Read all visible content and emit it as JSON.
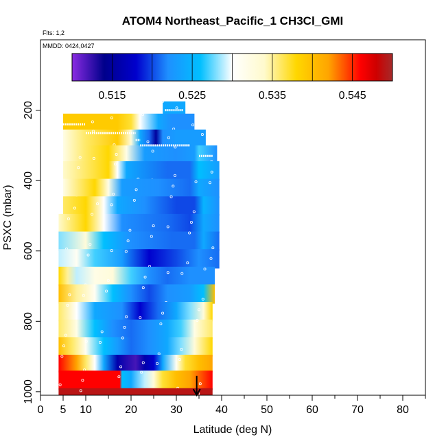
{
  "chart_data": {
    "type": "heatmap",
    "title": "ATOM4 Northeast_Pacific_1 CH3Cl_GMI",
    "annotations": [
      "Flts: 1,2",
      "MMDD: 0424,0427"
    ],
    "xlabel": "Latitude (deg N)",
    "ylabel": "PSXC (mbar)",
    "xlim": [
      0,
      85
    ],
    "ylim": [
      1010,
      0
    ],
    "x_ticks": [
      0,
      5,
      10,
      20,
      30,
      40,
      50,
      60,
      70,
      80
    ],
    "y_ticks": [
      200,
      400,
      600,
      800,
      1000
    ],
    "colorbar": {
      "min": 0.51,
      "max": 0.55,
      "ticks": [
        0.515,
        0.525,
        0.535,
        0.545
      ],
      "tick_labels": [
        "0.515",
        "0.525",
        "0.535",
        "0.545"
      ],
      "stops": [
        {
          "v": 0.51,
          "c": "#8a2be2"
        },
        {
          "v": 0.514,
          "c": "#00008b"
        },
        {
          "v": 0.518,
          "c": "#0000cd"
        },
        {
          "v": 0.522,
          "c": "#1e90ff"
        },
        {
          "v": 0.526,
          "c": "#00bfff"
        },
        {
          "v": 0.53,
          "c": "#ffffff"
        },
        {
          "v": 0.534,
          "c": "#fffacd"
        },
        {
          "v": 0.538,
          "c": "#ffd700"
        },
        {
          "v": 0.542,
          "c": "#ffa500"
        },
        {
          "v": 0.546,
          "c": "#ff0000"
        },
        {
          "v": 0.548,
          "c": "#cd0000"
        },
        {
          "v": 0.55,
          "c": "#a52a2a"
        }
      ]
    },
    "bands": [
      {
        "p0": 175,
        "p1": 220,
        "lat0": 27,
        "lat1": 32,
        "profile": [
          [
            27,
            0.524
          ],
          [
            32,
            0.524
          ]
        ]
      },
      {
        "p0": 210,
        "p1": 260,
        "lat0": 5,
        "lat1": 34,
        "profile": [
          [
            5,
            0.539
          ],
          [
            17,
            0.539
          ],
          [
            20,
            0.537
          ],
          [
            22,
            0.53
          ],
          [
            26,
            0.524
          ],
          [
            29,
            0.522
          ],
          [
            34,
            0.522
          ]
        ]
      },
      {
        "p0": 255,
        "p1": 305,
        "lat0": 5,
        "lat1": 36.5,
        "profile": [
          [
            5,
            0.532
          ],
          [
            10,
            0.536
          ],
          [
            17,
            0.539
          ],
          [
            20,
            0.533
          ],
          [
            22,
            0.524
          ],
          [
            24,
            0.521
          ],
          [
            25.5,
            0.515
          ],
          [
            27,
            0.522
          ],
          [
            30,
            0.523
          ],
          [
            36.5,
            0.523
          ]
        ]
      },
      {
        "p0": 300,
        "p1": 350,
        "lat0": 5,
        "lat1": 39,
        "profile": [
          [
            5,
            0.532
          ],
          [
            10,
            0.536
          ],
          [
            15,
            0.538
          ],
          [
            19,
            0.532
          ],
          [
            23,
            0.523
          ],
          [
            30,
            0.522
          ],
          [
            34,
            0.523
          ],
          [
            35,
            0.527
          ],
          [
            39,
            0.522
          ]
        ]
      },
      {
        "p0": 345,
        "p1": 400,
        "lat0": 5,
        "lat1": 39.5,
        "profile": [
          [
            5,
            0.534
          ],
          [
            15,
            0.538
          ],
          [
            17,
            0.53
          ],
          [
            19,
            0.524
          ],
          [
            28,
            0.521
          ],
          [
            33,
            0.521
          ],
          [
            35,
            0.526
          ],
          [
            39.5,
            0.523
          ]
        ]
      },
      {
        "p0": 395,
        "p1": 450,
        "lat0": 5,
        "lat1": 39.5,
        "profile": [
          [
            5,
            0.532
          ],
          [
            12,
            0.538
          ],
          [
            15,
            0.532
          ],
          [
            18,
            0.523
          ],
          [
            26,
            0.522
          ],
          [
            33,
            0.521
          ],
          [
            35,
            0.524
          ],
          [
            39.5,
            0.522
          ]
        ]
      },
      {
        "p0": 445,
        "p1": 500,
        "lat0": 5,
        "lat1": 39.5,
        "profile": [
          [
            5,
            0.536
          ],
          [
            10,
            0.538
          ],
          [
            14,
            0.53
          ],
          [
            17,
            0.524
          ],
          [
            23,
            0.522
          ],
          [
            30,
            0.52
          ],
          [
            34,
            0.52
          ],
          [
            36,
            0.525
          ],
          [
            39.5,
            0.522
          ]
        ]
      },
      {
        "p0": 495,
        "p1": 550,
        "lat0": 4,
        "lat1": 39.5,
        "profile": [
          [
            4,
            0.534
          ],
          [
            10,
            0.538
          ],
          [
            14,
            0.53
          ],
          [
            18,
            0.522
          ],
          [
            28,
            0.521
          ],
          [
            33,
            0.52
          ],
          [
            36,
            0.524
          ],
          [
            39.5,
            0.522
          ]
        ]
      },
      {
        "p0": 545,
        "p1": 600,
        "lat0": 4,
        "lat1": 39.5,
        "profile": [
          [
            4,
            0.528
          ],
          [
            10,
            0.533
          ],
          [
            14,
            0.526
          ],
          [
            20,
            0.522
          ],
          [
            29,
            0.521
          ],
          [
            34,
            0.521
          ],
          [
            36,
            0.524
          ],
          [
            39.5,
            0.521
          ]
        ]
      },
      {
        "p0": 595,
        "p1": 650,
        "lat0": 4,
        "lat1": 39.5,
        "profile": [
          [
            4,
            0.529
          ],
          [
            8,
            0.531
          ],
          [
            12,
            0.527
          ],
          [
            18,
            0.523
          ],
          [
            24,
            0.518
          ],
          [
            30,
            0.52
          ],
          [
            35,
            0.522
          ],
          [
            39.5,
            0.521
          ]
        ]
      },
      {
        "p0": 645,
        "p1": 700,
        "lat0": 4,
        "lat1": 38.5,
        "profile": [
          [
            4,
            0.538
          ],
          [
            6,
            0.535
          ],
          [
            8,
            0.529
          ],
          [
            12,
            0.532
          ],
          [
            16,
            0.533
          ],
          [
            20,
            0.527
          ],
          [
            24,
            0.522
          ],
          [
            28,
            0.521
          ],
          [
            33,
            0.522
          ],
          [
            38.5,
            0.522
          ]
        ]
      },
      {
        "p0": 695,
        "p1": 750,
        "lat0": 4,
        "lat1": 38.5,
        "profile": [
          [
            4,
            0.54
          ],
          [
            8,
            0.535
          ],
          [
            12,
            0.531
          ],
          [
            16,
            0.526
          ],
          [
            20,
            0.522
          ],
          [
            24,
            0.52
          ],
          [
            28,
            0.522
          ],
          [
            33,
            0.523
          ],
          [
            36,
            0.526
          ],
          [
            38.5,
            0.54
          ]
        ]
      },
      {
        "p0": 745,
        "p1": 800,
        "lat0": 4,
        "lat1": 38,
        "profile": [
          [
            4,
            0.536
          ],
          [
            8,
            0.53
          ],
          [
            12,
            0.524
          ],
          [
            18,
            0.522
          ],
          [
            22,
            0.518
          ],
          [
            26,
            0.521
          ],
          [
            30,
            0.524
          ],
          [
            33,
            0.528
          ],
          [
            36,
            0.533
          ],
          [
            38,
            0.538
          ]
        ]
      },
      {
        "p0": 795,
        "p1": 850,
        "lat0": 4,
        "lat1": 38,
        "profile": [
          [
            4,
            0.536
          ],
          [
            8,
            0.532
          ],
          [
            12,
            0.526
          ],
          [
            16,
            0.522
          ],
          [
            20,
            0.521
          ],
          [
            24,
            0.522
          ],
          [
            28,
            0.524
          ],
          [
            31,
            0.527
          ],
          [
            34,
            0.532
          ],
          [
            38,
            0.536
          ]
        ]
      },
      {
        "p0": 845,
        "p1": 900,
        "lat0": 4,
        "lat1": 38,
        "profile": [
          [
            4,
            0.54
          ],
          [
            7,
            0.536
          ],
          [
            10,
            0.531
          ],
          [
            14,
            0.526
          ],
          [
            17,
            0.523
          ],
          [
            20,
            0.521
          ],
          [
            24,
            0.522
          ],
          [
            28,
            0.524
          ],
          [
            31,
            0.528
          ],
          [
            34,
            0.533
          ],
          [
            38,
            0.538
          ]
        ]
      },
      {
        "p0": 895,
        "p1": 945,
        "lat0": 4,
        "lat1": 38,
        "profile": [
          [
            4,
            0.546
          ],
          [
            8,
            0.542
          ],
          [
            10,
            0.536
          ],
          [
            12,
            0.53
          ],
          [
            14,
            0.524
          ],
          [
            17,
            0.516
          ],
          [
            21,
            0.512
          ],
          [
            23,
            0.516
          ],
          [
            25,
            0.518
          ],
          [
            27,
            0.524
          ],
          [
            30,
            0.531
          ],
          [
            32,
            0.537
          ],
          [
            35,
            0.54
          ],
          [
            38,
            0.542
          ]
        ]
      },
      {
        "p0": 940,
        "p1": 995,
        "lat0": 4,
        "lat1": 38,
        "profile": [
          [
            4,
            0.546
          ],
          [
            17.5,
            0.546
          ],
          [
            18,
            0.526
          ],
          [
            20,
            0.524
          ],
          [
            23,
            0.529
          ],
          [
            25,
            0.533
          ],
          [
            27,
            0.537
          ],
          [
            30,
            0.54
          ],
          [
            33,
            0.542
          ],
          [
            38,
            0.546
          ]
        ]
      },
      {
        "p0": 990,
        "p1": 1040,
        "lat0": 4,
        "lat1": 38,
        "profile": [
          [
            4,
            0.549
          ],
          [
            38,
            0.549
          ]
        ]
      }
    ],
    "flight_track_segments": [
      {
        "lat0": 27.5,
        "lat1": 31.5,
        "p": 200
      },
      {
        "lat0": 5,
        "lat1": 10,
        "p": 240
      },
      {
        "lat0": 10,
        "lat1": 21,
        "p": 265
      },
      {
        "lat0": 21,
        "lat1": 22,
        "p": 285
      },
      {
        "lat0": 22,
        "lat1": 33,
        "p": 300
      },
      {
        "lat0": 35,
        "lat1": 38,
        "p": 330
      }
    ],
    "arrow": {
      "lat": 34.5,
      "p_from": 955,
      "p_to": 1010
    }
  }
}
